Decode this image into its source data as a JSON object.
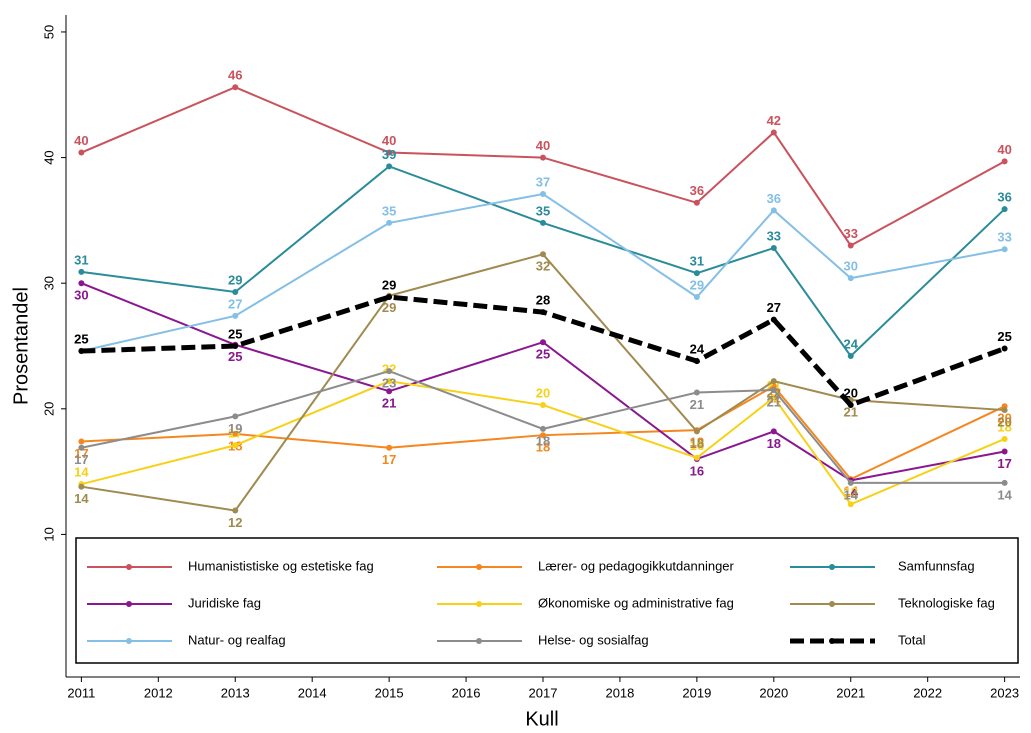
{
  "chart_data": {
    "type": "line",
    "x": [
      2011,
      2013,
      2015,
      2017,
      2019,
      2020,
      2021,
      2023
    ],
    "xlabel": "Kull",
    "ylabel": "Prosentandel",
    "xlim": [
      2010.8,
      2023.2
    ],
    "ylim": [
      -1.35,
      51.35
    ],
    "xticks": [
      2011,
      2012,
      2013,
      2014,
      2015,
      2016,
      2017,
      2018,
      2019,
      2020,
      2021,
      2022,
      2023
    ],
    "yticks": [
      10,
      20,
      30,
      40,
      50
    ],
    "legend": "bottom",
    "series": [
      {
        "name": "Humanististiske og estetiske fag",
        "color": "#c9525c",
        "values": [
          40.4,
          45.6,
          40.4,
          40.0,
          36.4,
          42.0,
          33.0,
          39.7
        ],
        "value_labels": [
          "40",
          "46",
          "40",
          "40",
          "36",
          "42",
          "33",
          "40"
        ]
      },
      {
        "name": "Lærer- og pedagogikkutdanninger",
        "color": "#f4871f",
        "values": [
          17.4,
          18.0,
          16.9,
          17.9,
          18.3,
          21.8,
          14.4,
          20.2
        ],
        "value_labels": [
          "17",
          "18",
          "17",
          "18",
          "18",
          "22",
          "14",
          "20"
        ]
      },
      {
        "name": "Samfunnsfag",
        "color": "#2a8c9a",
        "values": [
          30.9,
          29.3,
          39.3,
          34.8,
          30.8,
          32.8,
          24.2,
          35.9
        ],
        "value_labels": [
          "31",
          "29",
          "39",
          "35",
          "31",
          "33",
          "24",
          "36"
        ]
      },
      {
        "name": "Juridiske fag",
        "color": "#8a178f",
        "values": [
          30.0,
          25.1,
          21.4,
          25.3,
          16.0,
          18.2,
          14.3,
          16.6
        ],
        "value_labels": [
          "30",
          "25",
          "21",
          "25",
          "16",
          "18",
          "14",
          "17"
        ]
      },
      {
        "name": "Økonomiske og administrative fag",
        "color": "#f7d117",
        "values": [
          14.0,
          17.1,
          22.2,
          20.3,
          16.1,
          20.9,
          12.4,
          17.6
        ],
        "value_labels": [
          "14",
          "17",
          "22",
          "20",
          "16",
          "21",
          "12",
          "18"
        ]
      },
      {
        "name": "Teknologiske fag",
        "color": "#a08a4f",
        "values": [
          13.8,
          11.9,
          29.0,
          32.3,
          18.2,
          22.2,
          20.7,
          19.9
        ],
        "value_labels": [
          "14",
          "12",
          "29",
          "32",
          "18",
          "22",
          "21",
          "20"
        ]
      },
      {
        "name": "Natur- og realfag",
        "color": "#84bfe6",
        "values": [
          24.6,
          27.4,
          34.8,
          37.1,
          28.9,
          35.8,
          30.4,
          32.7
        ],
        "value_labels": [
          "25",
          "27",
          "35",
          "37",
          "29",
          "36",
          "30",
          "33"
        ]
      },
      {
        "name": "Helse- og sosialfag",
        "color": "#8c8c8c",
        "values": [
          16.9,
          19.4,
          23.0,
          18.4,
          21.3,
          21.5,
          14.1,
          14.1
        ],
        "value_labels": [
          "17",
          "19",
          "23",
          "18",
          "21",
          "21",
          "14",
          "14"
        ]
      },
      {
        "name": "Total",
        "color": "#000000",
        "dashed": true,
        "values": [
          24.6,
          25.0,
          28.9,
          27.7,
          23.8,
          27.1,
          20.3,
          24.8
        ],
        "value_labels": [
          "25",
          "25",
          "29",
          "28",
          "24",
          "27",
          "20",
          "25"
        ]
      }
    ]
  }
}
